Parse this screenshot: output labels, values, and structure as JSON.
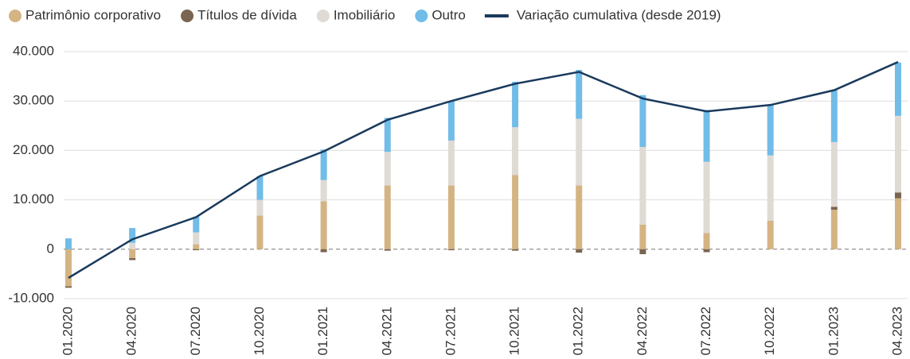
{
  "chart_data": {
    "type": "bar",
    "categories": [
      "01.2020",
      "04.2020",
      "07.2020",
      "10.2020",
      "01.2021",
      "04.2021",
      "07.2021",
      "10.2021",
      "01.2022",
      "04.2022",
      "07.2022",
      "10.2022",
      "01.2023",
      "04.2023"
    ],
    "series": [
      {
        "name": "Patrimônio corporativo",
        "color": "#d4b483",
        "values": [
          -7500,
          -1800,
          1000,
          6800,
          9700,
          12900,
          12900,
          15000,
          12900,
          5000,
          3300,
          5800,
          8000,
          10300
        ]
      },
      {
        "name": "Títulos de dívida",
        "color": "#7a6552",
        "values": [
          -300,
          -400,
          -200,
          0,
          -600,
          -300,
          -200,
          -300,
          -700,
          -1000,
          -600,
          0,
          600,
          1200
        ]
      },
      {
        "name": "Imobiliário",
        "color": "#e0dad5",
        "values": [
          0,
          1300,
          2400,
          3200,
          4300,
          6800,
          9100,
          9700,
          13500,
          15700,
          14400,
          13200,
          13100,
          15500
        ]
      },
      {
        "name": "Outro",
        "color": "#72bce8",
        "values": [
          2200,
          3000,
          3200,
          4800,
          6200,
          6900,
          8000,
          9200,
          9900,
          10500,
          10500,
          10200,
          10500,
          10800
        ]
      },
      {
        "name": "Variação cumulativa (desde 2019)",
        "type": "line",
        "color": "#1a3a5c",
        "values": [
          -5800,
          2000,
          6500,
          14800,
          19800,
          26200,
          30000,
          33500,
          35900,
          30500,
          27900,
          29200,
          32200,
          37900
        ]
      }
    ],
    "ylim": [
      -10000,
      40000
    ],
    "yticks": [
      {
        "value": -10000,
        "label": "-10.000"
      },
      0,
      {
        "value": 10000,
        "label": "10.000"
      },
      {
        "value": 20000,
        "label": "20.000"
      },
      {
        "value": 30000,
        "label": "30.000"
      },
      {
        "value": 40000,
        "label": "40.000"
      }
    ],
    "grid": true,
    "legend": "top"
  }
}
